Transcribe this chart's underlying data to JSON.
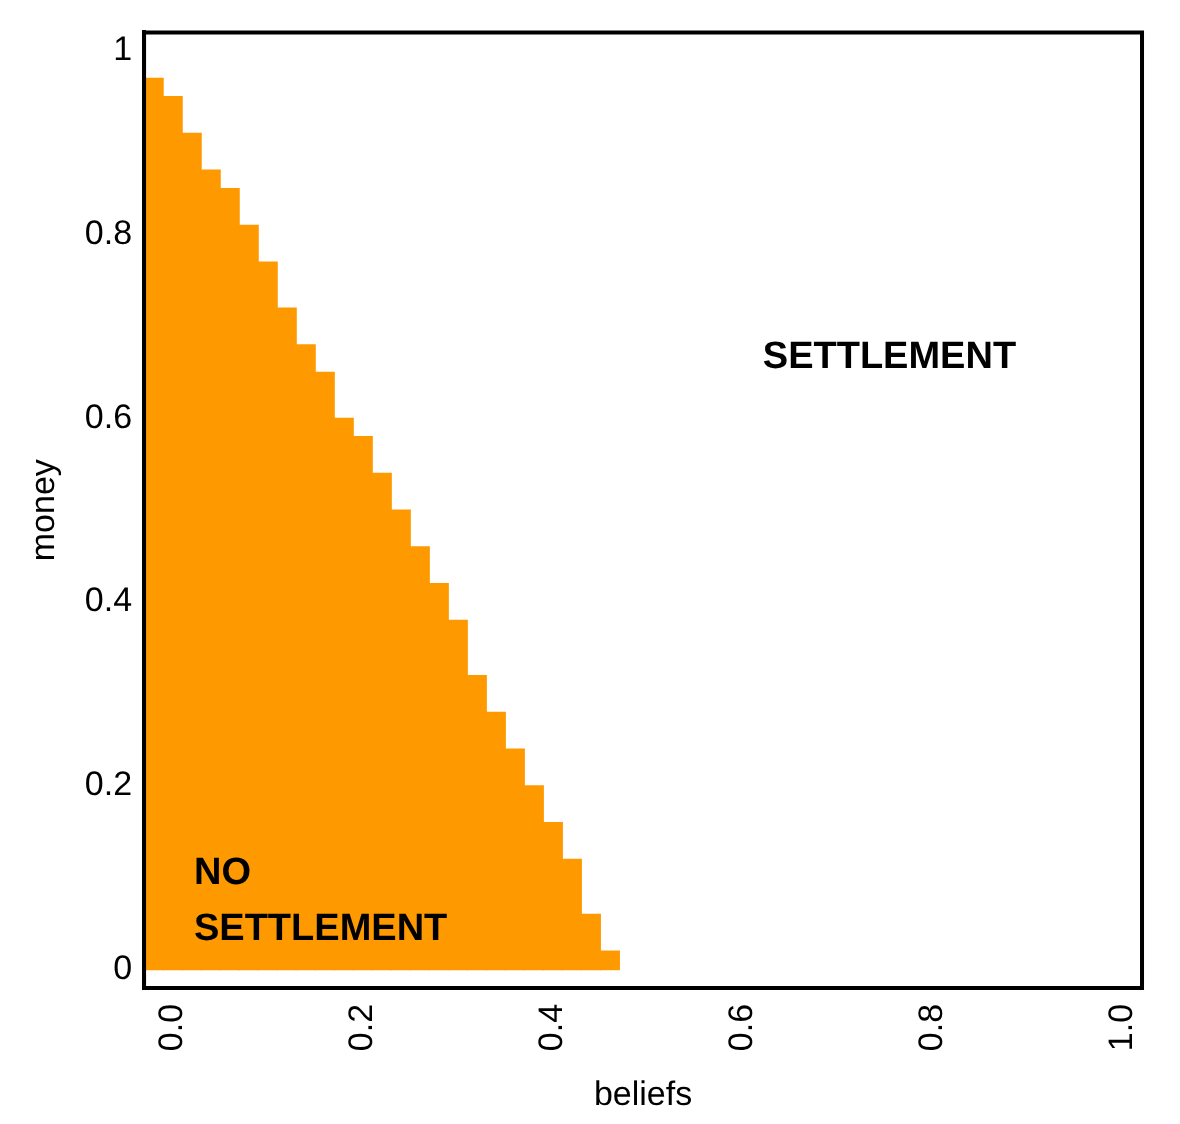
{
  "chart_data": {
    "type": "histogram",
    "xlabel": "beliefs",
    "ylabel": "money",
    "color": "#ff9900",
    "bins": [
      -0.03,
      -0.01,
      0.01,
      0.03,
      0.05,
      0.07,
      0.09,
      0.11,
      0.13,
      0.15,
      0.17,
      0.19,
      0.21,
      0.23,
      0.25,
      0.27,
      0.29,
      0.31,
      0.33,
      0.35,
      0.37,
      0.39,
      0.41,
      0.43,
      0.45,
      0.47
    ],
    "values": [
      0.97,
      0.95,
      0.91,
      0.87,
      0.85,
      0.81,
      0.77,
      0.72,
      0.68,
      0.65,
      0.6,
      0.58,
      0.54,
      0.5,
      0.46,
      0.42,
      0.38,
      0.32,
      0.28,
      0.24,
      0.2,
      0.16,
      0.12,
      0.06,
      0.02
    ],
    "xlim": [
      -0.03,
      1.02
    ],
    "xticks": [
      {
        "value": 0,
        "label": "0.0"
      },
      0.2,
      0.4,
      0.6,
      0.8,
      {
        "value": 1,
        "label": "1.0"
      }
    ],
    "ylim": [
      -0.02,
      1.02
    ],
    "yticks": [
      0,
      0.2,
      0.4,
      0.6,
      0.8,
      1
    ],
    "grid": false,
    "legend": false,
    "annotations": [
      "SETTLEMENT",
      "NO\nSETTLEMENT"
    ]
  }
}
